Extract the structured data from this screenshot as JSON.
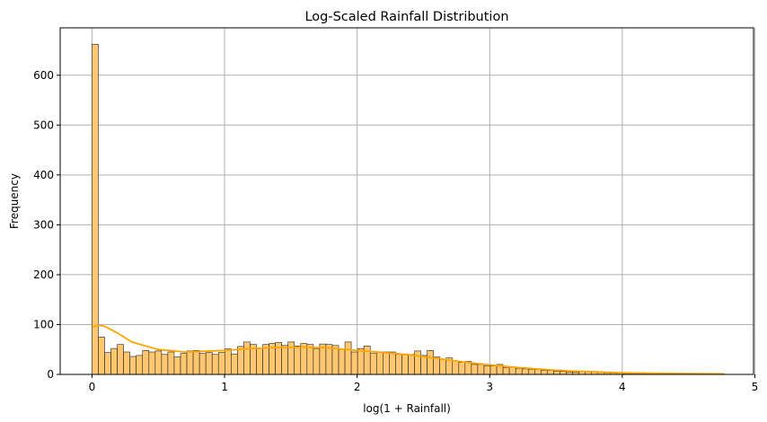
{
  "chart_data": {
    "type": "bar",
    "title": "Log-Scaled Rainfall Distribution",
    "xlabel": "log(1 + Rainfall)",
    "ylabel": "Frequency",
    "xlim": [
      -0.24,
      4.99
    ],
    "ylim": [
      0,
      695
    ],
    "xticks": [
      0,
      1,
      2,
      3,
      4,
      5
    ],
    "yticks": [
      0,
      100,
      200,
      300,
      400,
      500,
      600
    ],
    "grid": true,
    "bar_color": "#ffc870",
    "bar_edge_color": "#222222",
    "kde_color": "#ffa500",
    "bin_start": 0,
    "bin_width": 0.0477,
    "counts": [
      662,
      75,
      44,
      52,
      60,
      45,
      36,
      38,
      48,
      45,
      47,
      40,
      45,
      35,
      42,
      47,
      48,
      42,
      44,
      40,
      44,
      51,
      41,
      56,
      65,
      60,
      52,
      60,
      62,
      64,
      58,
      65,
      57,
      62,
      60,
      52,
      61,
      60,
      58,
      50,
      65,
      45,
      52,
      57,
      42,
      45,
      45,
      45,
      40,
      41,
      40,
      47,
      38,
      48,
      35,
      30,
      33,
      27,
      24,
      26,
      20,
      20,
      17,
      17,
      20,
      14,
      15,
      12,
      11,
      10,
      10,
      8,
      8,
      6,
      6,
      5,
      4,
      5,
      6,
      5,
      4,
      3,
      3,
      3,
      2,
      2,
      2,
      2,
      1,
      1,
      1,
      1,
      1,
      1,
      1,
      1,
      1,
      1,
      1,
      1
    ],
    "kde_curve": {
      "x": [
        0,
        0.05,
        0.1,
        0.2,
        0.3,
        0.5,
        0.7,
        1.0,
        1.2,
        1.4,
        1.6,
        1.8,
        2.0,
        2.2,
        2.4,
        2.6,
        2.8,
        3.0,
        3.2,
        3.4,
        3.6,
        3.8,
        4.0,
        4.2,
        4.4,
        4.6,
        4.77
      ],
      "y": [
        95,
        99,
        96,
        82,
        65,
        50,
        45,
        48,
        52,
        54,
        55,
        53,
        48,
        44,
        39,
        32,
        25,
        19,
        14,
        10,
        7,
        5,
        3.5,
        2.5,
        2,
        1.5,
        1
      ]
    }
  }
}
